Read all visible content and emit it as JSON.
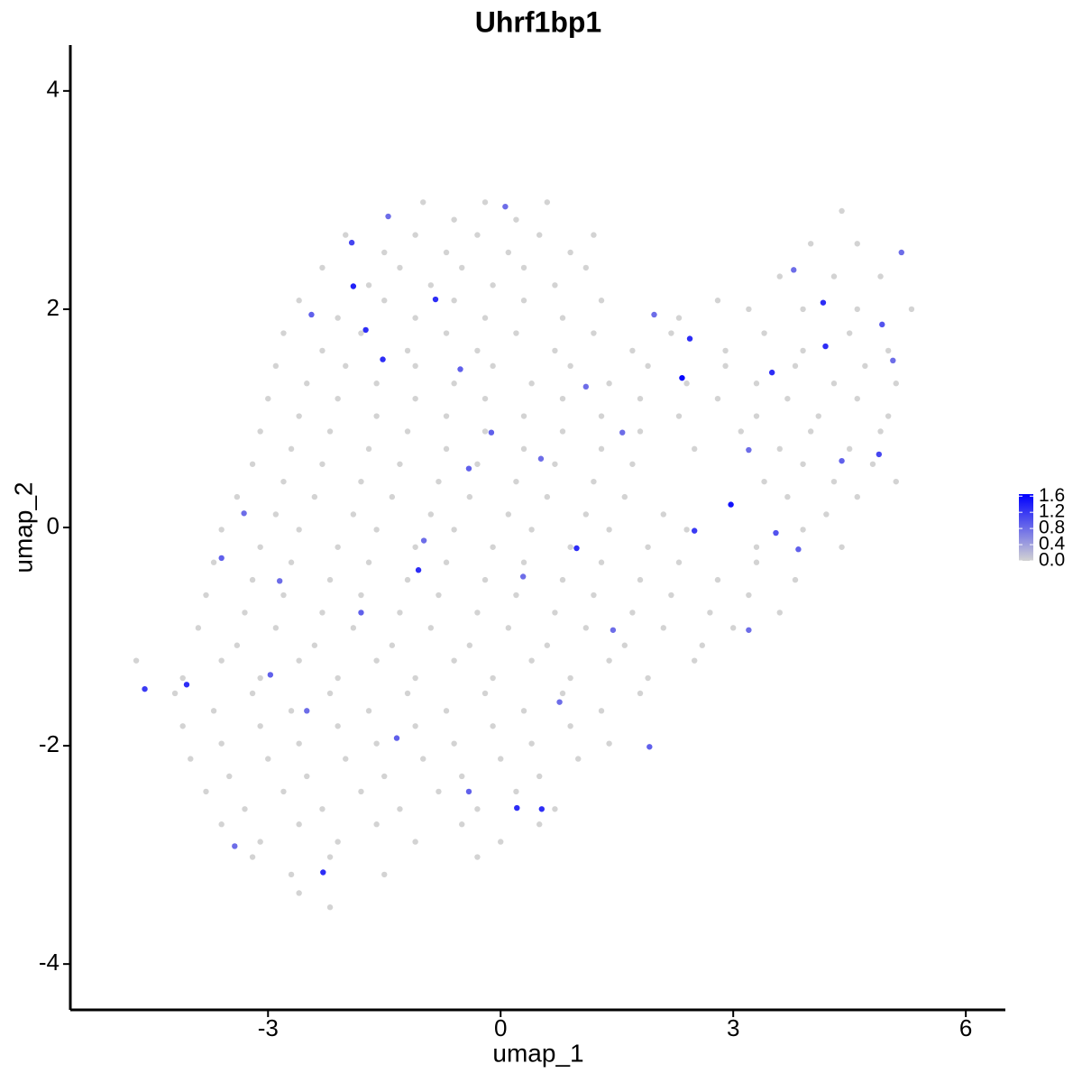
{
  "chart_data": {
    "type": "scatter",
    "title": "Uhrf1bp1",
    "x_label": "umap_1",
    "y_label": "umap_2",
    "xlim": [
      -5.55,
      6.51
    ],
    "ylim": [
      -4.42,
      4.42
    ],
    "xticks": [
      -3,
      0,
      3,
      6
    ],
    "yticks": [
      -4,
      -2,
      0,
      2,
      4
    ],
    "point_color_low": "#d3d3d3",
    "point_color_high": "#0000ff",
    "colorbar": {
      "lim": [
        0,
        1.65
      ],
      "ticks": [
        {
          "value": 0,
          "label": "0.0"
        },
        0.4,
        0.8,
        1.2,
        1.6
      ]
    },
    "x": [
      -1.0,
      -0.6,
      -0.2,
      0.2,
      0.6,
      -2.0,
      -1.5,
      -1.1,
      -0.7,
      -0.3,
      0.1,
      0.5,
      0.9,
      1.2,
      -2.3,
      -1.7,
      -1.3,
      -0.9,
      -0.5,
      -0.1,
      0.3,
      0.7,
      1.1,
      -2.6,
      -2.1,
      -1.5,
      -1.1,
      -0.6,
      -0.2,
      0.3,
      0.8,
      1.3,
      2.3,
      2.8,
      -2.8,
      -2.3,
      -1.8,
      -1.2,
      -0.7,
      -0.3,
      0.2,
      0.7,
      1.2,
      1.7,
      2.2,
      2.9,
      3.4,
      3.9,
      4.5,
      5.0,
      -2.9,
      -2.5,
      -2.0,
      -1.6,
      -1.1,
      -0.6,
      -0.1,
      0.4,
      0.9,
      1.4,
      1.9,
      2.4,
      2.9,
      3.3,
      3.8,
      4.3,
      4.7,
      5.1,
      -3.0,
      -2.6,
      -2.1,
      -1.6,
      -1.1,
      -0.7,
      -0.2,
      0.3,
      0.8,
      1.3,
      1.8,
      2.3,
      2.8,
      3.3,
      3.7,
      4.1,
      4.6,
      5.0,
      -3.1,
      -2.7,
      -2.2,
      -1.7,
      -1.2,
      -0.7,
      -0.2,
      0.3,
      0.8,
      1.3,
      1.8,
      2.5,
      3.1,
      3.6,
      4.0,
      4.5,
      4.9,
      -3.2,
      -2.8,
      -2.3,
      -1.8,
      -1.3,
      -0.8,
      -0.3,
      0.2,
      0.7,
      1.2,
      1.7,
      3.4,
      3.9,
      4.3,
      4.8,
      5.1,
      -3.4,
      -2.9,
      -2.4,
      -1.9,
      -1.4,
      -0.9,
      -0.4,
      0.1,
      0.6,
      1.1,
      1.6,
      2.1,
      3.7,
      4.2,
      4.6,
      -3.6,
      -3.1,
      -2.6,
      -2.1,
      -1.6,
      -1.1,
      -0.6,
      -0.1,
      0.4,
      0.9,
      1.4,
      1.9,
      2.4,
      3.3,
      3.9,
      4.4,
      -3.7,
      -3.2,
      -2.7,
      -2.2,
      -1.7,
      -1.2,
      -0.7,
      -0.2,
      0.3,
      0.8,
      1.3,
      1.8,
      2.3,
      2.8,
      3.3,
      3.8,
      -3.8,
      -3.3,
      -2.8,
      -2.3,
      -1.8,
      -1.3,
      -0.8,
      -0.3,
      0.2,
      0.7,
      1.2,
      1.7,
      2.2,
      2.7,
      3.2,
      3.6,
      -3.9,
      -3.4,
      -2.9,
      -2.4,
      -1.9,
      -1.4,
      -0.9,
      -0.4,
      0.1,
      0.6,
      1.1,
      1.6,
      2.1,
      2.6,
      3.0,
      -4.7,
      -4.1,
      -3.6,
      -3.1,
      -2.6,
      -2.1,
      -1.6,
      -1.1,
      -0.6,
      -0.1,
      0.4,
      0.9,
      1.4,
      1.9,
      2.5,
      -4.2,
      -3.7,
      -3.2,
      -2.7,
      -2.2,
      -1.7,
      -1.2,
      -0.7,
      -0.2,
      0.3,
      0.8,
      1.3,
      1.8,
      -4.1,
      -3.6,
      -3.1,
      -2.6,
      -2.1,
      -1.6,
      -1.1,
      -0.6,
      -0.1,
      0.4,
      0.9,
      1.4,
      -4.0,
      -3.5,
      -3.0,
      -2.5,
      -2.0,
      -1.5,
      -1.0,
      -0.5,
      0.0,
      0.5,
      1.0,
      -3.8,
      -3.3,
      -2.8,
      -2.3,
      -1.8,
      -1.3,
      -0.8,
      -0.3,
      0.2,
      0.7,
      -3.6,
      -3.1,
      -2.6,
      -2.1,
      -1.6,
      -1.1,
      -0.5,
      0.0,
      0.5,
      -3.2,
      -2.7,
      -2.2,
      -1.5,
      -0.3,
      -2.6,
      -2.2,
      4.4,
      4.0,
      4.6,
      3.6,
      4.3,
      4.9,
      3.2,
      3.9,
      4.6,
      5.3,
      -4.59,
      -3.6,
      -1.9,
      -1.92,
      -1.74,
      -1.52,
      -0.84,
      2.34,
      2.44,
      2.97,
      3.5,
      4.16,
      4.19,
      0.98,
      -1.06,
      0.21,
      0.53,
      -2.29,
      -4.05,
      2.5,
      3.55,
      3.84,
      4.88,
      4.92,
      4.4,
      1.98,
      -0.41,
      -0.12,
      0.52,
      -2.85,
      -2.97,
      -2.5,
      -1.34,
      -0.41,
      0.76,
      1.45,
      1.92,
      3.2,
      -3.43,
      -3.31,
      -2.44,
      -1.45,
      0.06,
      -0.52,
      -0.99,
      -1.8,
      0.29,
      1.1,
      1.57,
      5.17,
      5.06,
      3.78,
      3.2
    ],
    "y": [
      2.98,
      2.82,
      2.98,
      2.82,
      2.98,
      2.68,
      2.52,
      2.68,
      2.52,
      2.68,
      2.52,
      2.68,
      2.52,
      2.68,
      2.38,
      2.22,
      2.38,
      2.22,
      2.38,
      2.22,
      2.38,
      2.22,
      2.38,
      2.08,
      1.92,
      2.08,
      1.92,
      2.08,
      1.92,
      2.08,
      1.92,
      2.08,
      1.92,
      2.08,
      1.78,
      1.62,
      1.78,
      1.62,
      1.78,
      1.62,
      1.78,
      1.62,
      1.78,
      1.62,
      1.78,
      1.62,
      1.78,
      1.62,
      1.78,
      1.62,
      1.48,
      1.32,
      1.48,
      1.32,
      1.48,
      1.32,
      1.48,
      1.32,
      1.48,
      1.32,
      1.48,
      1.32,
      1.48,
      1.32,
      1.48,
      1.32,
      1.48,
      1.32,
      1.18,
      1.02,
      1.18,
      1.02,
      1.18,
      1.02,
      1.18,
      1.02,
      1.18,
      1.02,
      1.18,
      1.02,
      1.18,
      1.02,
      1.18,
      1.02,
      1.18,
      1.02,
      0.88,
      0.72,
      0.88,
      0.72,
      0.88,
      0.72,
      0.88,
      0.72,
      0.88,
      0.72,
      0.88,
      0.72,
      0.88,
      0.72,
      0.88,
      0.72,
      0.88,
      0.58,
      0.42,
      0.58,
      0.42,
      0.58,
      0.42,
      0.58,
      0.42,
      0.58,
      0.42,
      0.58,
      0.42,
      0.58,
      0.42,
      0.58,
      0.42,
      0.28,
      0.12,
      0.28,
      0.12,
      0.28,
      0.12,
      0.28,
      0.12,
      0.28,
      0.12,
      0.28,
      0.12,
      0.28,
      0.12,
      0.28,
      -0.02,
      -0.18,
      -0.02,
      -0.18,
      -0.02,
      -0.18,
      -0.02,
      -0.18,
      -0.02,
      -0.18,
      -0.02,
      -0.18,
      -0.02,
      -0.18,
      -0.02,
      -0.18,
      -0.32,
      -0.48,
      -0.32,
      -0.48,
      -0.32,
      -0.48,
      -0.32,
      -0.48,
      -0.32,
      -0.48,
      -0.32,
      -0.48,
      -0.32,
      -0.48,
      -0.32,
      -0.48,
      -0.62,
      -0.78,
      -0.62,
      -0.78,
      -0.62,
      -0.78,
      -0.62,
      -0.78,
      -0.62,
      -0.78,
      -0.62,
      -0.78,
      -0.62,
      -0.78,
      -0.62,
      -0.78,
      -0.92,
      -1.08,
      -0.92,
      -1.08,
      -0.92,
      -1.08,
      -0.92,
      -1.08,
      -0.92,
      -1.08,
      -0.92,
      -1.08,
      -0.92,
      -1.08,
      -0.92,
      -1.22,
      -1.38,
      -1.22,
      -1.38,
      -1.22,
      -1.38,
      -1.22,
      -1.38,
      -1.22,
      -1.38,
      -1.22,
      -1.38,
      -1.22,
      -1.38,
      -1.22,
      -1.52,
      -1.68,
      -1.52,
      -1.68,
      -1.52,
      -1.68,
      -1.52,
      -1.68,
      -1.52,
      -1.68,
      -1.52,
      -1.68,
      -1.52,
      -1.82,
      -1.98,
      -1.82,
      -1.98,
      -1.82,
      -1.98,
      -1.82,
      -1.98,
      -1.82,
      -1.98,
      -1.82,
      -1.98,
      -2.12,
      -2.28,
      -2.12,
      -2.28,
      -2.12,
      -2.28,
      -2.12,
      -2.28,
      -2.12,
      -2.28,
      -2.12,
      -2.42,
      -2.58,
      -2.42,
      -2.58,
      -2.42,
      -2.58,
      -2.42,
      -2.58,
      -2.42,
      -2.58,
      -2.72,
      -2.88,
      -2.72,
      -2.88,
      -2.72,
      -2.88,
      -2.72,
      -2.88,
      -2.72,
      -3.02,
      -3.18,
      -3.02,
      -3.18,
      -3.02,
      -3.35,
      -3.48,
      2.9,
      2.6,
      2.6,
      2.3,
      2.3,
      2.3,
      2.0,
      2.0,
      2.0,
      2.0,
      -1.48,
      -0.28,
      2.21,
      2.61,
      1.81,
      1.54,
      2.09,
      1.37,
      1.73,
      0.21,
      1.42,
      2.06,
      1.66,
      -0.19,
      -0.39,
      -2.57,
      -2.58,
      -3.16,
      -1.44,
      -0.03,
      -0.05,
      -0.2,
      0.67,
      1.86,
      0.61,
      1.95,
      0.54,
      0.87,
      0.63,
      -0.49,
      -1.35,
      -1.68,
      -1.93,
      -2.42,
      -1.6,
      -0.94,
      -2.01,
      -0.94,
      -2.92,
      0.13,
      1.95,
      2.85,
      2.94,
      1.45,
      -0.12,
      -0.78,
      -0.45,
      1.29,
      0.87,
      2.52,
      1.53,
      2.36,
      0.71
    ],
    "values": [
      0,
      0,
      0,
      0,
      0,
      0,
      0,
      0,
      0,
      0,
      0,
      0,
      0,
      0,
      0,
      0,
      0,
      0,
      0,
      0,
      0,
      0,
      0,
      0,
      0,
      0,
      0,
      0,
      0,
      0,
      0,
      0,
      0,
      0,
      0,
      0,
      0,
      0,
      0,
      0,
      0,
      0,
      0,
      0,
      0,
      0,
      0,
      0,
      0,
      0,
      0,
      0,
      0,
      0,
      0,
      0,
      0,
      0,
      0,
      0,
      0,
      0,
      0,
      0,
      0,
      0,
      0,
      0,
      0,
      0,
      0,
      0,
      0,
      0,
      0,
      0,
      0,
      0,
      0,
      0,
      0,
      0,
      0,
      0,
      0,
      0,
      0,
      0,
      0,
      0,
      0,
      0,
      0,
      0,
      0,
      0,
      0,
      0,
      0,
      0,
      0,
      0,
      0,
      0,
      0,
      0,
      0,
      0,
      0,
      0,
      0,
      0,
      0,
      0,
      0,
      0,
      0,
      0,
      0,
      0,
      0,
      0,
      0,
      0,
      0,
      0,
      0,
      0,
      0,
      0,
      0,
      0,
      0,
      0,
      0,
      0,
      0,
      0,
      0,
      0,
      0,
      0,
      0,
      0,
      0,
      0,
      0,
      0,
      0,
      0,
      0,
      0,
      0,
      0,
      0,
      0,
      0,
      0,
      0,
      0,
      0,
      0,
      0,
      0,
      0,
      0,
      0,
      0,
      0,
      0,
      0,
      0,
      0,
      0,
      0,
      0,
      0,
      0,
      0,
      0,
      0,
      0,
      0,
      0,
      0,
      0,
      0,
      0,
      0,
      0,
      0,
      0,
      0,
      0,
      0,
      0,
      0,
      0,
      0,
      0,
      0,
      0,
      0,
      0,
      0,
      0,
      0,
      0,
      0,
      0,
      0,
      0,
      0,
      0,
      0,
      0,
      0,
      0,
      0,
      0,
      0,
      0,
      0,
      0,
      0,
      0,
      0,
      0,
      0,
      0,
      0,
      0,
      0,
      0,
      0,
      0,
      0,
      0,
      0,
      0,
      0,
      0,
      0,
      0,
      0,
      0,
      0,
      0,
      0,
      0,
      0,
      0,
      0,
      0,
      0,
      0,
      0,
      0,
      0,
      0,
      0,
      0,
      0,
      0,
      0,
      0,
      0,
      0,
      0,
      0,
      0,
      0,
      0,
      0,
      0,
      0,
      0,
      0,
      0,
      0,
      0,
      0,
      0,
      0,
      1.2,
      0.9,
      1.4,
      1.1,
      1.3,
      1.3,
      1.3,
      1.6,
      1.3,
      1.5,
      1.3,
      1.3,
      1.3,
      1.3,
      1.3,
      1.3,
      1.3,
      1.3,
      1.3,
      1.2,
      1.0,
      0.9,
      1.1,
      1.0,
      0.9,
      0.8,
      0.9,
      0.9,
      0.8,
      0.8,
      0.9,
      0.8,
      0.9,
      0.9,
      0.8,
      0.8,
      0.9,
      0.8,
      0.8,
      0.8,
      0.9,
      0.8,
      0.8,
      0.9,
      0.8,
      0.9,
      0.8,
      0.8,
      0.8,
      0.8,
      0.8,
      0.8,
      0.8
    ]
  }
}
